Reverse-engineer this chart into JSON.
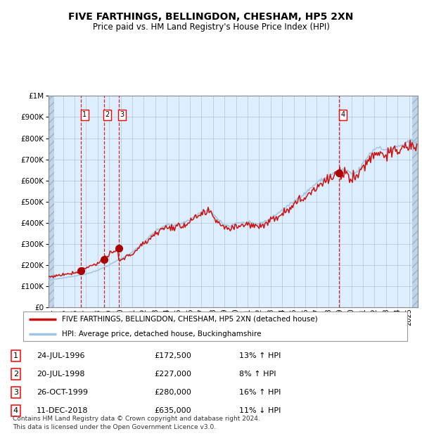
{
  "title": "FIVE FARTHINGS, BELLINGDON, CHESHAM, HP5 2XN",
  "subtitle": "Price paid vs. HM Land Registry's House Price Index (HPI)",
  "legend_line1": "FIVE FARTHINGS, BELLINGDON, CHESHAM, HP5 2XN (detached house)",
  "legend_line2": "HPI: Average price, detached house, Buckinghamshire",
  "footer": "Contains HM Land Registry data © Crown copyright and database right 2024.\nThis data is licensed under the Open Government Licence v3.0.",
  "sales": [
    {
      "num": 1,
      "date": "24-JUL-1996",
      "price": 172500,
      "pct": "13%",
      "dir": "↑"
    },
    {
      "num": 2,
      "date": "20-JUL-1998",
      "price": 227000,
      "pct": "8%",
      "dir": "↑"
    },
    {
      "num": 3,
      "date": "26-OCT-1999",
      "price": 280000,
      "pct": "16%",
      "dir": "↑"
    },
    {
      "num": 4,
      "date": "11-DEC-2018",
      "price": 635000,
      "pct": "11%",
      "dir": "↓"
    }
  ],
  "sale_dates_decimal": [
    1996.56,
    1998.55,
    1999.82,
    2018.95
  ],
  "hpi_color": "#a0c4e0",
  "price_color": "#cc1111",
  "dot_color": "#aa0000",
  "vline_color": "#cc1111",
  "bg_color": "#ddeeff",
  "hatch_color": "#c0d4e8",
  "grid_color": "#b0b8c8",
  "ylim": [
    0,
    1000000
  ],
  "xlim_start": 1993.75,
  "xlim_end": 2025.75,
  "yticks": [
    0,
    100000,
    200000,
    300000,
    400000,
    500000,
    600000,
    700000,
    800000,
    900000,
    1000000
  ],
  "ytick_labels": [
    "£0",
    "£100K",
    "£200K",
    "£300K",
    "£400K",
    "£500K",
    "£600K",
    "£700K",
    "£800K",
    "£900K",
    "£1M"
  ],
  "xticks": [
    1994,
    1995,
    1996,
    1997,
    1998,
    1999,
    2000,
    2001,
    2002,
    2003,
    2004,
    2005,
    2006,
    2007,
    2008,
    2009,
    2010,
    2011,
    2012,
    2013,
    2014,
    2015,
    2016,
    2017,
    2018,
    2019,
    2020,
    2021,
    2022,
    2023,
    2024,
    2025
  ]
}
